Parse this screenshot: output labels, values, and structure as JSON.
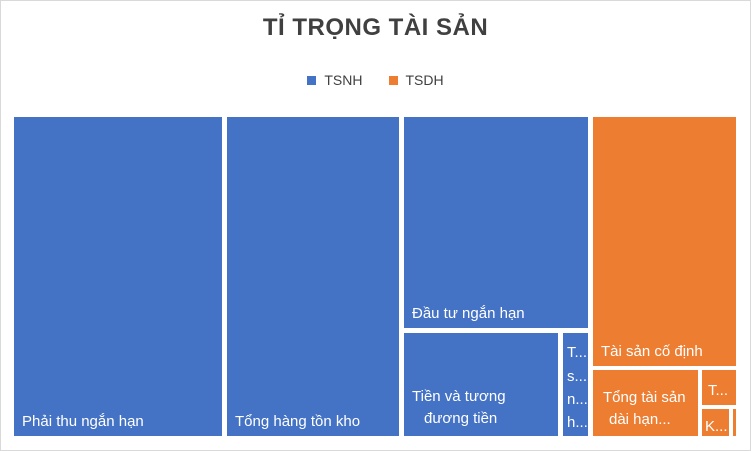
{
  "colors": {
    "TSNH": "#4472c4",
    "TSDH": "#ed7d31"
  },
  "chart_data": {
    "type": "treemap",
    "title": "TỈ TRỌNG TÀI SẢN",
    "legend": [
      "TSNH",
      "TSDH"
    ],
    "legend_position": "top",
    "items": [
      {
        "group": "TSNH",
        "label": "Phải thu ngắn hạn",
        "value": 95
      },
      {
        "group": "TSNH",
        "label": "Tổng hàng tồn kho",
        "value": 80
      },
      {
        "group": "TSNH",
        "label": "Đầu tư ngắn hạn",
        "value": 39
      },
      {
        "group": "TSNH",
        "label": "Tiền và tương đương tiền",
        "value": 29
      },
      {
        "group": "TSNH",
        "label": "Tài sản ngắn hạn khác",
        "label_shown": "T... s... n... h...",
        "value": 4
      },
      {
        "group": "TSDH",
        "label": "Tài sản cố định",
        "value": 30
      },
      {
        "group": "TSDH",
        "label": "Tổng tài sản dài hạn khác",
        "label_shown": "Tổng tài sản dài hạn...",
        "value": 13
      },
      {
        "group": "TSDH",
        "label": "T...",
        "value": 3.5
      },
      {
        "group": "TSDH",
        "label": "K...",
        "value": 2.5
      },
      {
        "group": "TSDH",
        "label": "",
        "value": 0.4
      }
    ]
  }
}
